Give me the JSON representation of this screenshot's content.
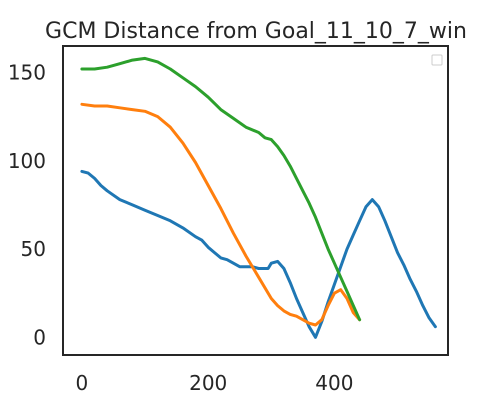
{
  "chart_data": {
    "type": "line",
    "title": "GCM Distance from Goal_11_10_7_win",
    "xlabel": "",
    "ylabel": "",
    "xlim": [
      -30,
      580
    ],
    "ylim": [
      -10,
      165
    ],
    "xticks": [
      0,
      200,
      400
    ],
    "yticks": [
      0,
      50,
      100,
      150
    ],
    "grid": false,
    "legend": {
      "placement": "top-right",
      "entries": []
    },
    "series": [
      {
        "color": "#1f77b4",
        "x": [
          0,
          10,
          20,
          30,
          40,
          60,
          80,
          100,
          120,
          140,
          160,
          180,
          190,
          200,
          210,
          220,
          230,
          240,
          250,
          260,
          270,
          280,
          290,
          295,
          300,
          310,
          320,
          330,
          340,
          350,
          360,
          370,
          380,
          390,
          400,
          410,
          420,
          430,
          440,
          450,
          460,
          470,
          480,
          490,
          500,
          510,
          520,
          530,
          540,
          550,
          560
        ],
        "y": [
          94,
          93,
          90,
          86,
          83,
          78,
          75,
          72,
          69,
          66,
          62,
          57,
          55,
          51,
          48,
          45,
          44,
          42,
          40,
          40,
          40,
          39,
          39,
          39,
          42,
          43,
          39,
          31,
          22,
          14,
          6,
          0,
          9,
          20,
          30,
          40,
          50,
          58,
          66,
          74,
          78,
          74,
          66,
          57,
          48,
          41,
          33,
          26,
          18,
          11,
          6
        ]
      },
      {
        "color": "#ff7f0e",
        "x": [
          0,
          20,
          40,
          60,
          80,
          100,
          120,
          140,
          160,
          180,
          200,
          220,
          240,
          260,
          280,
          300,
          310,
          320,
          330,
          340,
          350,
          360,
          370,
          380,
          390,
          400,
          410,
          420,
          430,
          440
        ],
        "y": [
          132,
          131,
          131,
          130,
          129,
          128,
          125,
          119,
          110,
          99,
          86,
          73,
          59,
          46,
          34,
          22,
          18,
          15,
          13,
          12,
          10,
          8,
          7,
          10,
          18,
          25,
          27,
          22,
          14,
          10
        ]
      },
      {
        "color": "#2ca02c",
        "x": [
          0,
          20,
          40,
          60,
          80,
          100,
          120,
          140,
          160,
          180,
          200,
          220,
          240,
          260,
          280,
          290,
          300,
          310,
          320,
          330,
          340,
          350,
          360,
          370,
          380,
          390,
          400,
          410,
          420,
          430,
          440
        ],
        "y": [
          152,
          152,
          153,
          155,
          157,
          158,
          156,
          152,
          147,
          142,
          136,
          129,
          124,
          119,
          116,
          113,
          112,
          108,
          103,
          97,
          90,
          83,
          76,
          68,
          59,
          50,
          42,
          34,
          26,
          18,
          10
        ]
      }
    ]
  }
}
